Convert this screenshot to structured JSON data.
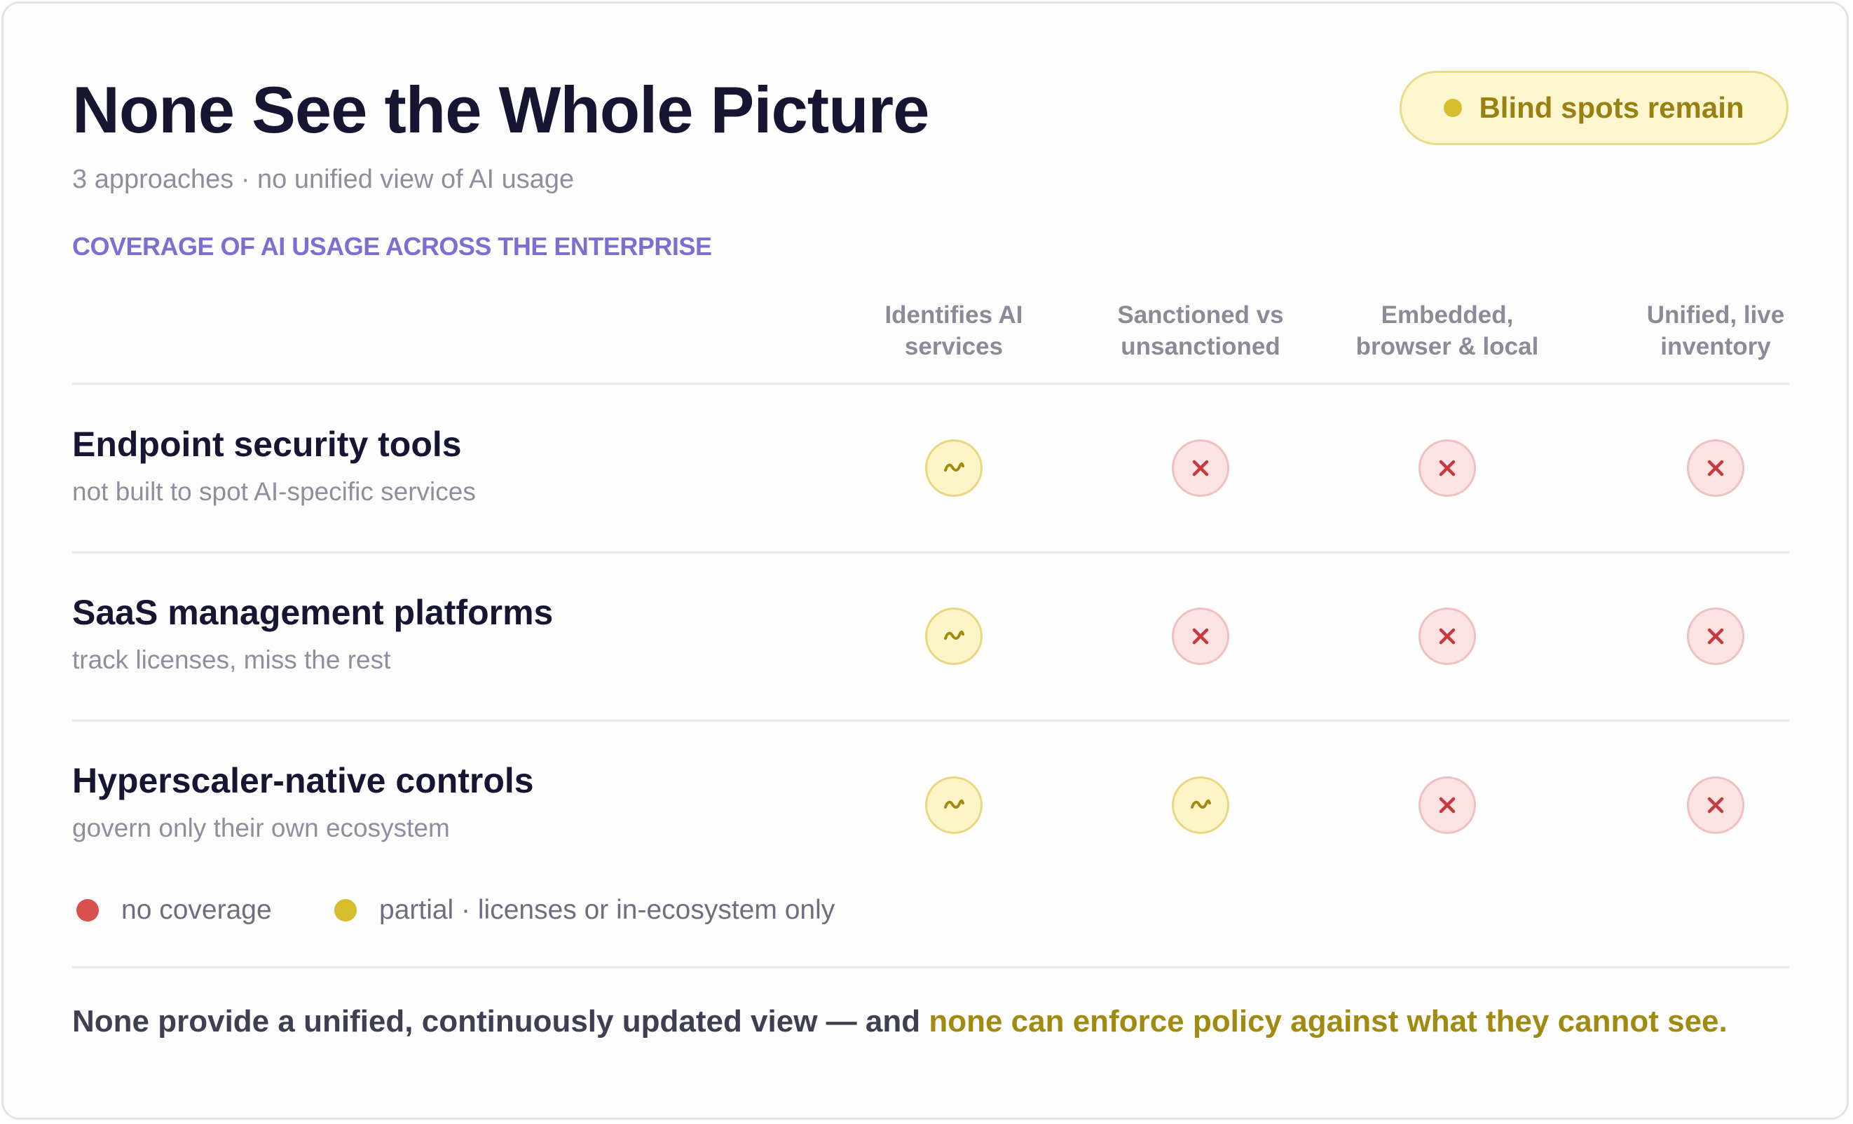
{
  "header": {
    "title": "None See the Whole Picture",
    "subtitle": "3 approaches · no unified view of AI usage",
    "section_label": "COVERAGE OF AI USAGE ACROSS THE ENTERPRISE",
    "badge": {
      "label": "Blind spots remain",
      "color": "#d6bd2c"
    }
  },
  "columns": [
    {
      "line1": "Identifies AI",
      "line2": "services"
    },
    {
      "line1": "Sanctioned vs",
      "line2": "unsanctioned"
    },
    {
      "line1": "Embedded,",
      "line2": "browser & local"
    },
    {
      "line1": "Unified, live",
      "line2": "inventory"
    }
  ],
  "rows": [
    {
      "title": "Endpoint security tools",
      "subtitle": "not built to spot AI-specific services",
      "cells": [
        "partial",
        "none",
        "none",
        "none"
      ]
    },
    {
      "title": "SaaS management platforms",
      "subtitle": "track licenses, miss the rest",
      "cells": [
        "partial",
        "none",
        "none",
        "none"
      ]
    },
    {
      "title": "Hyperscaler-native controls",
      "subtitle": "govern only their own ecosystem",
      "cells": [
        "partial",
        "partial",
        "none",
        "none"
      ]
    }
  ],
  "legend": [
    {
      "label": "no coverage",
      "color": "#d9514e",
      "icon": "red-dot-icon"
    },
    {
      "label": "partial · licenses or in-ecosystem only",
      "color": "#d6bd2c",
      "icon": "yellow-dot-icon"
    }
  ],
  "footer": {
    "text": "None provide a unified, continuously updated view — and ",
    "highlight": "none can enforce policy against what they cannot see."
  },
  "icons": {
    "partial": "tilde-icon",
    "none": "x-icon"
  },
  "colors": {
    "partial_icon": "#a08a10",
    "none_icon": "#c6393d",
    "accent": "#7b6fd0",
    "highlight": "#a08a10"
  }
}
